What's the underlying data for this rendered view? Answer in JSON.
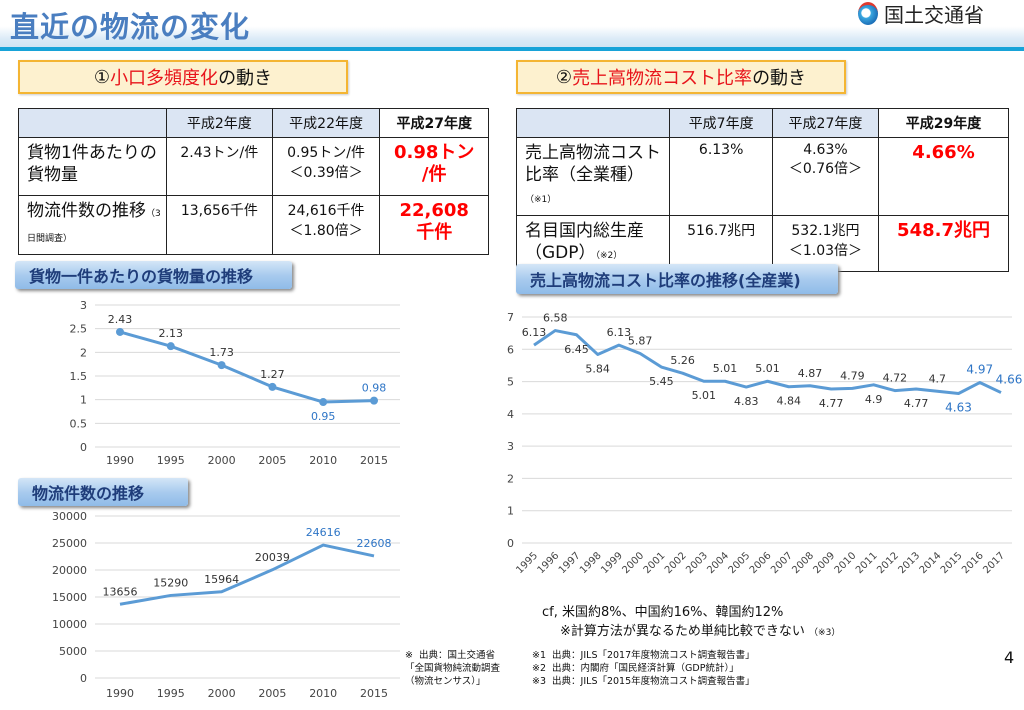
{
  "header": {
    "title": "直近の物流の変化",
    "logo_text": "国土交通省"
  },
  "section1": {
    "prefix": "①",
    "highlight": "小口多頻度化",
    "suffix": "の動き"
  },
  "section2": {
    "prefix": "②",
    "highlight": "売上高物流コスト比率",
    "suffix": "の動き"
  },
  "table1": {
    "headers": [
      "",
      "平成2年度",
      "平成22年度",
      "平成27年度"
    ],
    "rows": [
      {
        "label": "貨物1件あたりの貨物量",
        "sub": "",
        "cells": [
          "2.43トン/件",
          "0.95トン/件\n＜0.39倍＞",
          "0.98トン\n/件"
        ]
      },
      {
        "label": "物流件数の推移",
        "sub": "（3日間調査）",
        "cells": [
          "13,656千件",
          "24,616千件\n＜1.80倍＞",
          "22,608\n千件"
        ]
      }
    ]
  },
  "table2": {
    "headers": [
      "",
      "平成7年度",
      "平成27年度",
      "平成29年度"
    ],
    "rows": [
      {
        "label": "売上高物流コスト比率（全業種）",
        "sub": "（※1）",
        "cells": [
          "6.13%",
          "4.63%\n＜0.76倍＞",
          "4.66%"
        ]
      },
      {
        "label": "名目国内総生産（GDP）",
        "sub": "（※2）",
        "cells": [
          "516.7兆円",
          "532.1兆円\n＜1.03倍＞",
          "548.7兆円"
        ]
      }
    ]
  },
  "chart_data": [
    {
      "type": "line",
      "title": "貨物一件あたりの貨物量の推移",
      "categories": [
        "1990",
        "1995",
        "2000",
        "2005",
        "2010",
        "2015"
      ],
      "values": [
        2.43,
        2.13,
        1.73,
        1.27,
        0.95,
        0.98
      ],
      "ylim": [
        0,
        3
      ],
      "yticks": [
        "0",
        "0.5",
        "1",
        "1.5",
        "2",
        "2.5",
        "3"
      ],
      "grid": true,
      "markers": true,
      "highlight_indices": [
        4,
        5
      ],
      "color": "#5b9bd5",
      "highlight_color": "#2e75c6"
    },
    {
      "type": "line",
      "title": "物流件数の推移",
      "categories": [
        "1990",
        "1995",
        "2000",
        "2005",
        "2010",
        "2015"
      ],
      "values": [
        13656,
        15290,
        15964,
        20039,
        24616,
        22608
      ],
      "ylim": [
        0,
        30000
      ],
      "yticks": [
        "0",
        "5000",
        "10000",
        "15000",
        "20000",
        "25000",
        "30000"
      ],
      "grid": true,
      "markers": false,
      "highlight_indices": [
        4,
        5
      ],
      "color": "#5b9bd5",
      "highlight_color": "#2e75c6"
    },
    {
      "type": "line",
      "title": "売上高物流コスト比率の推移(全産業)",
      "categories": [
        "1995",
        "1996",
        "1997",
        "1998",
        "1999",
        "2000",
        "2001",
        "2002",
        "2003",
        "2004",
        "2005",
        "2006",
        "2007",
        "2008",
        "2009",
        "2010",
        "2011",
        "2012",
        "2013",
        "2014",
        "2015",
        "2016",
        "2017"
      ],
      "values": [
        6.13,
        6.58,
        6.45,
        5.84,
        6.13,
        5.87,
        5.45,
        5.26,
        5.01,
        5.01,
        4.83,
        5.01,
        4.84,
        4.87,
        4.77,
        4.79,
        4.9,
        4.72,
        4.77,
        4.7,
        4.63,
        4.97,
        4.66
      ],
      "ylim": [
        0,
        7
      ],
      "yticks": [
        "0",
        "1",
        "2",
        "3",
        "4",
        "5",
        "6",
        "7"
      ],
      "grid": true,
      "markers": false,
      "highlight_indices": [
        20,
        21,
        22
      ],
      "color": "#5b9bd5",
      "highlight_color": "#2e75c6"
    }
  ],
  "notes": {
    "cf": "cf, 米国約8%、中国約16%、韓国約12%",
    "cf2": "※計算方法が異なるため単純比較できない",
    "cf2_ref": "（※3）",
    "source_left": "※  出典：国土交通省\n「全国貨物純流動調査\n（物流センサス）」",
    "source1": "※1  出典：JILS「2017年度物流コスト調査報告書」",
    "source2": "※2  出典：内閣府「国民経済計算（GDP統計）」",
    "source3": "※3  出典：JILS「2015年度物流コスト調査報告書」",
    "page": "4"
  }
}
